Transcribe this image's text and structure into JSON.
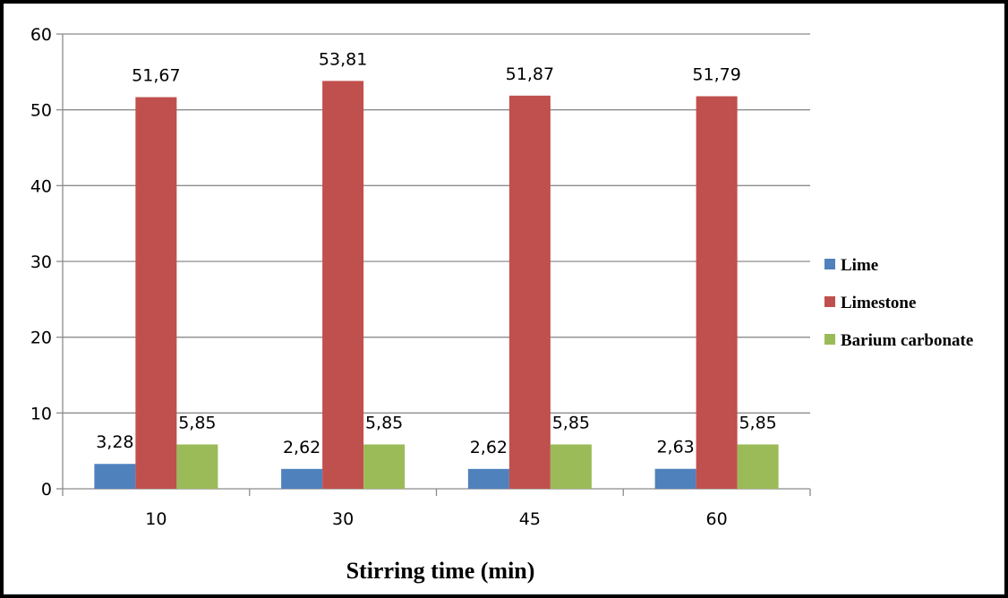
{
  "chart_data": {
    "type": "bar",
    "title": "",
    "xlabel": "Stirring time (min)",
    "ylabel": "",
    "categories": [
      "10",
      "30",
      "45",
      "60"
    ],
    "ylim": [
      0,
      60
    ],
    "yticks": [
      0,
      10,
      20,
      30,
      40,
      50,
      60
    ],
    "grid": true,
    "legend_position": "right",
    "series": [
      {
        "name": "Lime",
        "color": "#4f81bd",
        "values": [
          3.28,
          2.62,
          2.62,
          2.63
        ],
        "labels": [
          "3,28",
          "2,62",
          "2,62",
          "2,63"
        ]
      },
      {
        "name": "Limestone",
        "color": "#c0504d",
        "values": [
          51.67,
          53.81,
          51.87,
          51.79
        ],
        "labels": [
          "51,67",
          "53,81",
          "51,87",
          "51,79"
        ]
      },
      {
        "name": "Barium carbonate",
        "color": "#9bbb59",
        "values": [
          5.85,
          5.85,
          5.85,
          5.85
        ],
        "labels": [
          "5,85",
          "5,85",
          "5,85",
          "5,85"
        ]
      }
    ]
  }
}
